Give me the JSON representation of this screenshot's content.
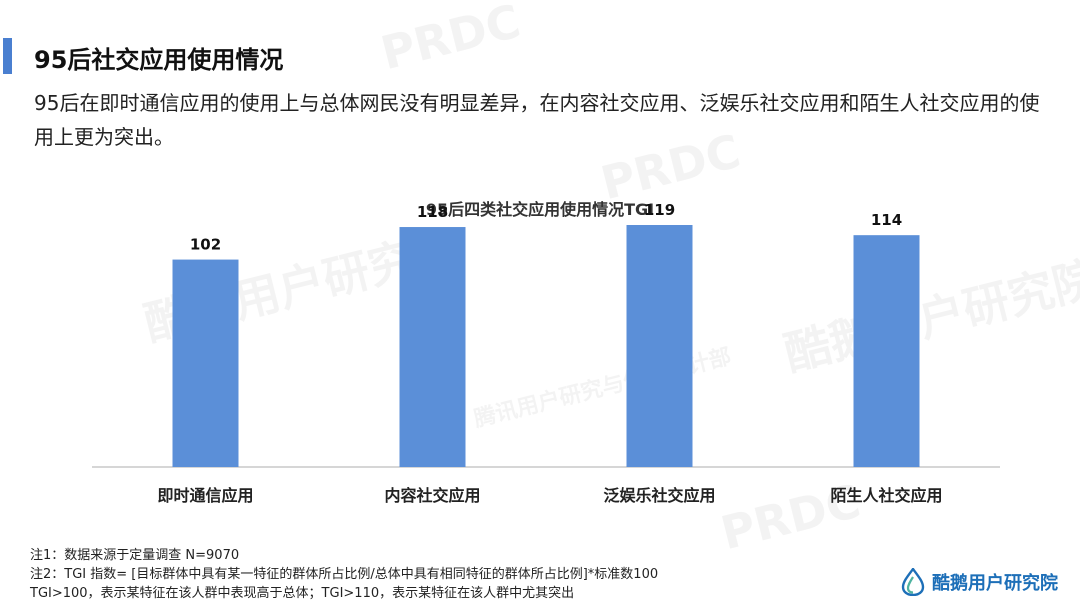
{
  "header": {
    "title": "95后社交应用使用情况",
    "subtitle": "95后在即时通信应用的使用上与总体网民没有明显差异，在内容社交应用、泛娱乐社交应用和陌生人社交应用的使用上更为突出。"
  },
  "chart_data": {
    "type": "bar",
    "title": "95后四类社交应用使用情况TGI",
    "categories": [
      "即时通信应用",
      "内容社交应用",
      "泛娱乐社交应用",
      "陌生人社交应用"
    ],
    "values": [
      102,
      118,
      119,
      114
    ],
    "data_labels": [
      "102",
      "118",
      "119",
      "114"
    ],
    "bar_color": "#5b8fd8",
    "ylim": [
      0,
      140
    ],
    "grid": false,
    "axis_line": true,
    "axis_color": "#c8c8c8"
  },
  "notes": [
    "注1：数据来源于定量调查  N=9070",
    "注2：TGI 指数= [目标群体中具有某一特征的群体所占比例/总体中具有相同特征的群体所占比例]*标准数100",
    "TGI>100，表示某特征在该人群中表现高于总体；TGI>110，表示某特征在该人群中尤其突出"
  ],
  "footer": {
    "logo_text": "酷鹅用户研究院",
    "logo_icon": "penguin-drop-icon",
    "brand_color": "#1d6fb8"
  },
  "watermarks": [
    "酷鹅用户研究院",
    "PRDC",
    "腾讯用户研究与体验设计部",
    "PRDC",
    "酷鹅用户研究院",
    "PRDC"
  ]
}
